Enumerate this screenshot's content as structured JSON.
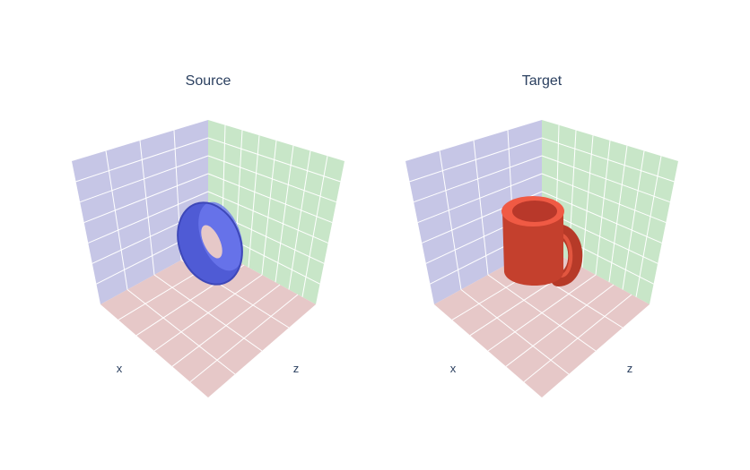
{
  "chart_data": [
    {
      "type": "3d-mesh",
      "title": "Source",
      "object": "torus",
      "color": "#4f5bd5",
      "axes": {
        "x_label": "x",
        "z_label": "z"
      },
      "walls": {
        "xy": "#c6c6e6",
        "yz": "#c8e6c8",
        "floor": "#e6c8c8"
      },
      "grid": true
    },
    {
      "type": "3d-mesh",
      "title": "Target",
      "object": "mug",
      "color": "#d2432f",
      "axes": {
        "x_label": "x",
        "z_label": "z"
      },
      "walls": {
        "xy": "#c6c6e6",
        "yz": "#c8e6c8",
        "floor": "#e6c8c8"
      },
      "grid": true
    }
  ]
}
